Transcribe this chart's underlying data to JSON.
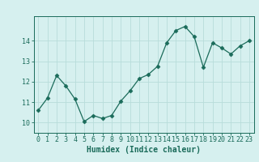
{
  "x": [
    0,
    1,
    2,
    3,
    4,
    5,
    6,
    7,
    8,
    9,
    10,
    11,
    12,
    13,
    14,
    15,
    16,
    17,
    18,
    19,
    20,
    21,
    22,
    23
  ],
  "y": [
    10.6,
    11.2,
    12.3,
    11.8,
    11.15,
    10.05,
    10.35,
    10.2,
    10.35,
    11.05,
    11.55,
    12.15,
    12.35,
    12.75,
    13.9,
    14.5,
    14.7,
    14.2,
    12.7,
    13.9,
    13.65,
    13.35,
    13.75,
    14.0
  ],
  "xlabel": "Humidex (Indice chaleur)",
  "ylabel": "",
  "xlim": [
    -0.5,
    23.5
  ],
  "ylim": [
    9.5,
    15.2
  ],
  "yticks": [
    10,
    11,
    12,
    13,
    14
  ],
  "xticks": [
    0,
    1,
    2,
    3,
    4,
    5,
    6,
    7,
    8,
    9,
    10,
    11,
    12,
    13,
    14,
    15,
    16,
    17,
    18,
    19,
    20,
    21,
    22,
    23
  ],
  "line_color": "#1a6b5a",
  "marker": "D",
  "marker_size": 2.5,
  "bg_color": "#d6f0ef",
  "grid_color": "#b8dcda",
  "title_fontsize": 6.5,
  "axis_fontsize": 7,
  "tick_fontsize": 6
}
